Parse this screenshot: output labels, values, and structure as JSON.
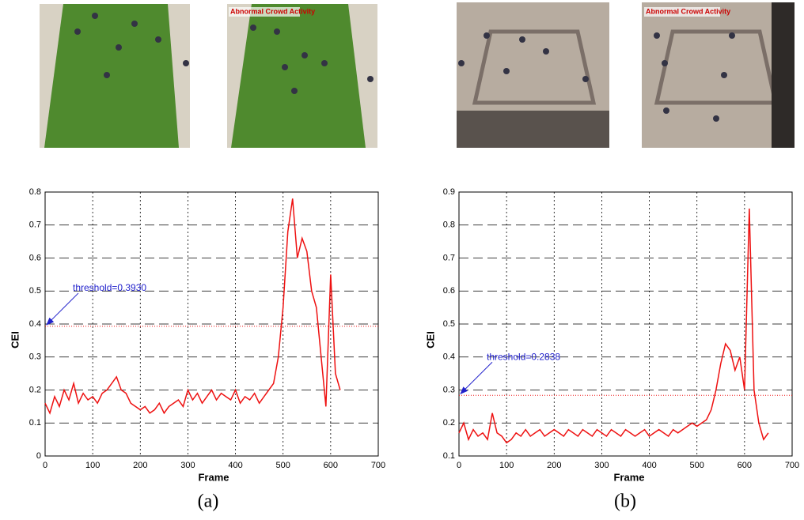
{
  "images": [
    "Abnormal Crowd Activity",
    "Abnormal Crowd Activity"
  ],
  "chart_data": [
    {
      "type": "line",
      "caption": "(a)",
      "x_label": "Frame",
      "y_label": "CEI",
      "xlim": [
        0,
        700
      ],
      "xticks": [
        0,
        100,
        200,
        300,
        400,
        500,
        600,
        700
      ],
      "ylim": [
        0,
        0.8
      ],
      "yticks": [
        0,
        0.1,
        0.2,
        0.3,
        0.4,
        0.5,
        0.6,
        0.7,
        0.8
      ],
      "grid": true,
      "threshold": {
        "value": 0.393,
        "label": "threshold=0.3930"
      },
      "series": [
        {
          "color": "#ee1111",
          "x": [
            0,
            10,
            20,
            30,
            40,
            50,
            60,
            70,
            80,
            90,
            100,
            110,
            120,
            130,
            140,
            150,
            160,
            170,
            180,
            190,
            200,
            210,
            220,
            230,
            240,
            250,
            260,
            270,
            280,
            290,
            300,
            310,
            320,
            330,
            340,
            350,
            360,
            370,
            380,
            390,
            400,
            410,
            420,
            430,
            440,
            450,
            460,
            470,
            480,
            490,
            500,
            510,
            520,
            530,
            540,
            550,
            560,
            570,
            580,
            590,
            600,
            610,
            620
          ],
          "values": [
            0.16,
            0.13,
            0.18,
            0.15,
            0.2,
            0.17,
            0.22,
            0.16,
            0.19,
            0.17,
            0.18,
            0.16,
            0.19,
            0.2,
            0.22,
            0.24,
            0.2,
            0.19,
            0.16,
            0.15,
            0.14,
            0.15,
            0.13,
            0.14,
            0.16,
            0.13,
            0.15,
            0.16,
            0.17,
            0.15,
            0.2,
            0.17,
            0.19,
            0.16,
            0.18,
            0.2,
            0.17,
            0.19,
            0.18,
            0.17,
            0.2,
            0.16,
            0.18,
            0.17,
            0.19,
            0.16,
            0.18,
            0.2,
            0.22,
            0.3,
            0.45,
            0.68,
            0.78,
            0.6,
            0.66,
            0.62,
            0.5,
            0.45,
            0.3,
            0.15,
            0.55,
            0.25,
            0.2
          ]
        }
      ]
    },
    {
      "type": "line",
      "caption": "(b)",
      "x_label": "Frame",
      "y_label": "CEI",
      "xlim": [
        0,
        700
      ],
      "xticks": [
        0,
        100,
        200,
        300,
        400,
        500,
        600,
        700
      ],
      "ylim": [
        0.1,
        0.9
      ],
      "yticks": [
        0.1,
        0.2,
        0.3,
        0.4,
        0.5,
        0.6,
        0.7,
        0.8,
        0.9
      ],
      "grid": true,
      "threshold": {
        "value": 0.2838,
        "label": "threshold=0.2838"
      },
      "series": [
        {
          "color": "#ee1111",
          "x": [
            0,
            10,
            20,
            30,
            40,
            50,
            60,
            70,
            80,
            90,
            100,
            110,
            120,
            130,
            140,
            150,
            160,
            170,
            180,
            190,
            200,
            210,
            220,
            230,
            240,
            250,
            260,
            270,
            280,
            290,
            300,
            310,
            320,
            330,
            340,
            350,
            360,
            370,
            380,
            390,
            400,
            410,
            420,
            430,
            440,
            450,
            460,
            470,
            480,
            490,
            500,
            510,
            520,
            530,
            540,
            550,
            560,
            570,
            580,
            590,
            600,
            610,
            620,
            630,
            640,
            650
          ],
          "values": [
            0.17,
            0.2,
            0.15,
            0.18,
            0.16,
            0.17,
            0.15,
            0.23,
            0.17,
            0.16,
            0.14,
            0.15,
            0.17,
            0.16,
            0.18,
            0.16,
            0.17,
            0.18,
            0.16,
            0.17,
            0.18,
            0.17,
            0.16,
            0.18,
            0.17,
            0.16,
            0.18,
            0.17,
            0.16,
            0.18,
            0.17,
            0.16,
            0.18,
            0.17,
            0.16,
            0.18,
            0.17,
            0.16,
            0.17,
            0.18,
            0.16,
            0.17,
            0.18,
            0.17,
            0.16,
            0.18,
            0.17,
            0.18,
            0.19,
            0.2,
            0.19,
            0.2,
            0.21,
            0.24,
            0.3,
            0.38,
            0.44,
            0.42,
            0.36,
            0.4,
            0.3,
            0.85,
            0.3,
            0.2,
            0.15,
            0.17
          ]
        }
      ]
    }
  ]
}
